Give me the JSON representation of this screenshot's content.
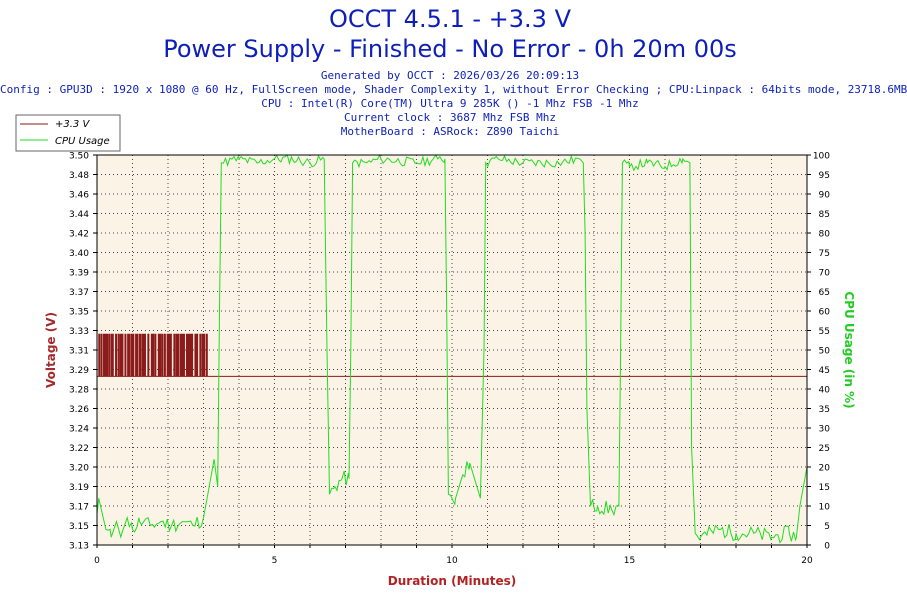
{
  "header": {
    "title": "OCCT 4.5.1 - +3.3 V",
    "subtitle": "Power Supply - Finished - No Error - 0h 20m 00s",
    "info_lines": [
      "Generated by OCCT : 2026/03/26 20:09:13",
      "Config : GPU3D : 1920 x 1080 @ 60 Hz, FullScreen mode, Shader Complexity 1, without Error Checking ; CPU:Linpack : 64bits mode, 23718.6MB",
      "CPU : Intel(R) Core(TM) Ultra 9 285K () -1 Mhz FSB -1 Mhz",
      "Current clock : 3687 Mhz FSB  Mhz",
      "MotherBoard : ASRock: Z890 Taichi"
    ]
  },
  "colors": {
    "voltage": "#8b1a1a",
    "cpu": "#22dd22",
    "plot_bg": "#fbf3e6",
    "grid": "#444444",
    "axis_label_left": "#a52a2a",
    "axis_label_right": "#22cc22",
    "axis_label_x": "#b22222",
    "text_blue": "#0d1fb8"
  },
  "chart_data": {
    "type": "line",
    "xlabel": "Duration (Minutes)",
    "ylabel_left": "Voltage (V)",
    "ylabel_right": "CPU Usage (in %)",
    "xlim": [
      0,
      20
    ],
    "ylim_left": [
      3.13,
      3.5
    ],
    "ylim_right": [
      0,
      100
    ],
    "x_ticks": [
      0,
      5,
      10,
      15,
      20
    ],
    "y_ticks_left": [
      "3.13",
      "3.15",
      "3.17",
      "3.19",
      "3.20",
      "3.22",
      "3.24",
      "3.26",
      "3.28",
      "3.29",
      "3.31",
      "3.33",
      "3.35",
      "3.37",
      "3.39",
      "3.40",
      "3.42",
      "3.44",
      "3.46",
      "3.48",
      "3.50"
    ],
    "y_ticks_right": [
      0,
      5,
      10,
      15,
      20,
      25,
      30,
      35,
      40,
      45,
      50,
      55,
      60,
      65,
      70,
      75,
      80,
      85,
      90,
      95,
      100
    ],
    "grid": true,
    "legend_position": "top-left",
    "series": [
      {
        "name": "+3.3 V",
        "axis": "left",
        "x": [
          0,
          1,
          2,
          3,
          3.1,
          4,
          5,
          10,
          15,
          20
        ],
        "values": [
          3.29,
          3.29,
          3.29,
          3.29,
          3.29,
          3.29,
          3.29,
          3.29,
          3.29,
          3.29
        ],
        "fluctuation": {
          "x_range": [
            0,
            3.1
          ],
          "high": 3.33,
          "low": 3.29
        }
      },
      {
        "name": "CPU Usage",
        "axis": "right",
        "x": [
          0,
          0.05,
          0.1,
          0.25,
          0.4,
          0.55,
          0.7,
          0.85,
          1.0,
          1.2,
          1.5,
          1.8,
          2.1,
          2.4,
          2.7,
          3.0,
          3.1,
          3.2,
          3.3,
          3.4,
          3.45,
          3.5,
          4.0,
          4.5,
          5.0,
          5.5,
          6.0,
          6.4,
          6.48,
          6.55,
          6.7,
          6.9,
          7.1,
          7.15,
          7.2,
          7.6,
          8.0,
          9.0,
          9.6,
          9.8,
          9.85,
          9.9,
          10.1,
          10.3,
          10.5,
          10.8,
          10.9,
          10.95,
          11.3,
          12.0,
          13.0,
          13.6,
          13.7,
          13.75,
          13.8,
          13.9,
          14.1,
          14.5,
          14.7,
          14.75,
          14.8,
          15.0,
          15.5,
          16.0,
          16.5,
          16.7,
          16.72,
          16.75,
          16.85,
          17.0,
          17.5,
          18.0,
          18.5,
          19.0,
          19.5,
          19.7,
          19.8,
          19.9,
          20.0
        ],
        "values": [
          8,
          12,
          10,
          4,
          2,
          6,
          3,
          7,
          4,
          6,
          5,
          6,
          5,
          6,
          5,
          7,
          12,
          17,
          22,
          15,
          60,
          98,
          99,
          98,
          99,
          99,
          98,
          99,
          50,
          13,
          15,
          17,
          17,
          50,
          98,
          98,
          99,
          98,
          99,
          99,
          60,
          13,
          12,
          18,
          21,
          12,
          50,
          98,
          99,
          98,
          98,
          99,
          98,
          80,
          35,
          10,
          10,
          9,
          10,
          50,
          98,
          97,
          98,
          97,
          99,
          98,
          70,
          25,
          3,
          2,
          4,
          3,
          3,
          2,
          3,
          2,
          10,
          15,
          20
        ]
      }
    ]
  }
}
